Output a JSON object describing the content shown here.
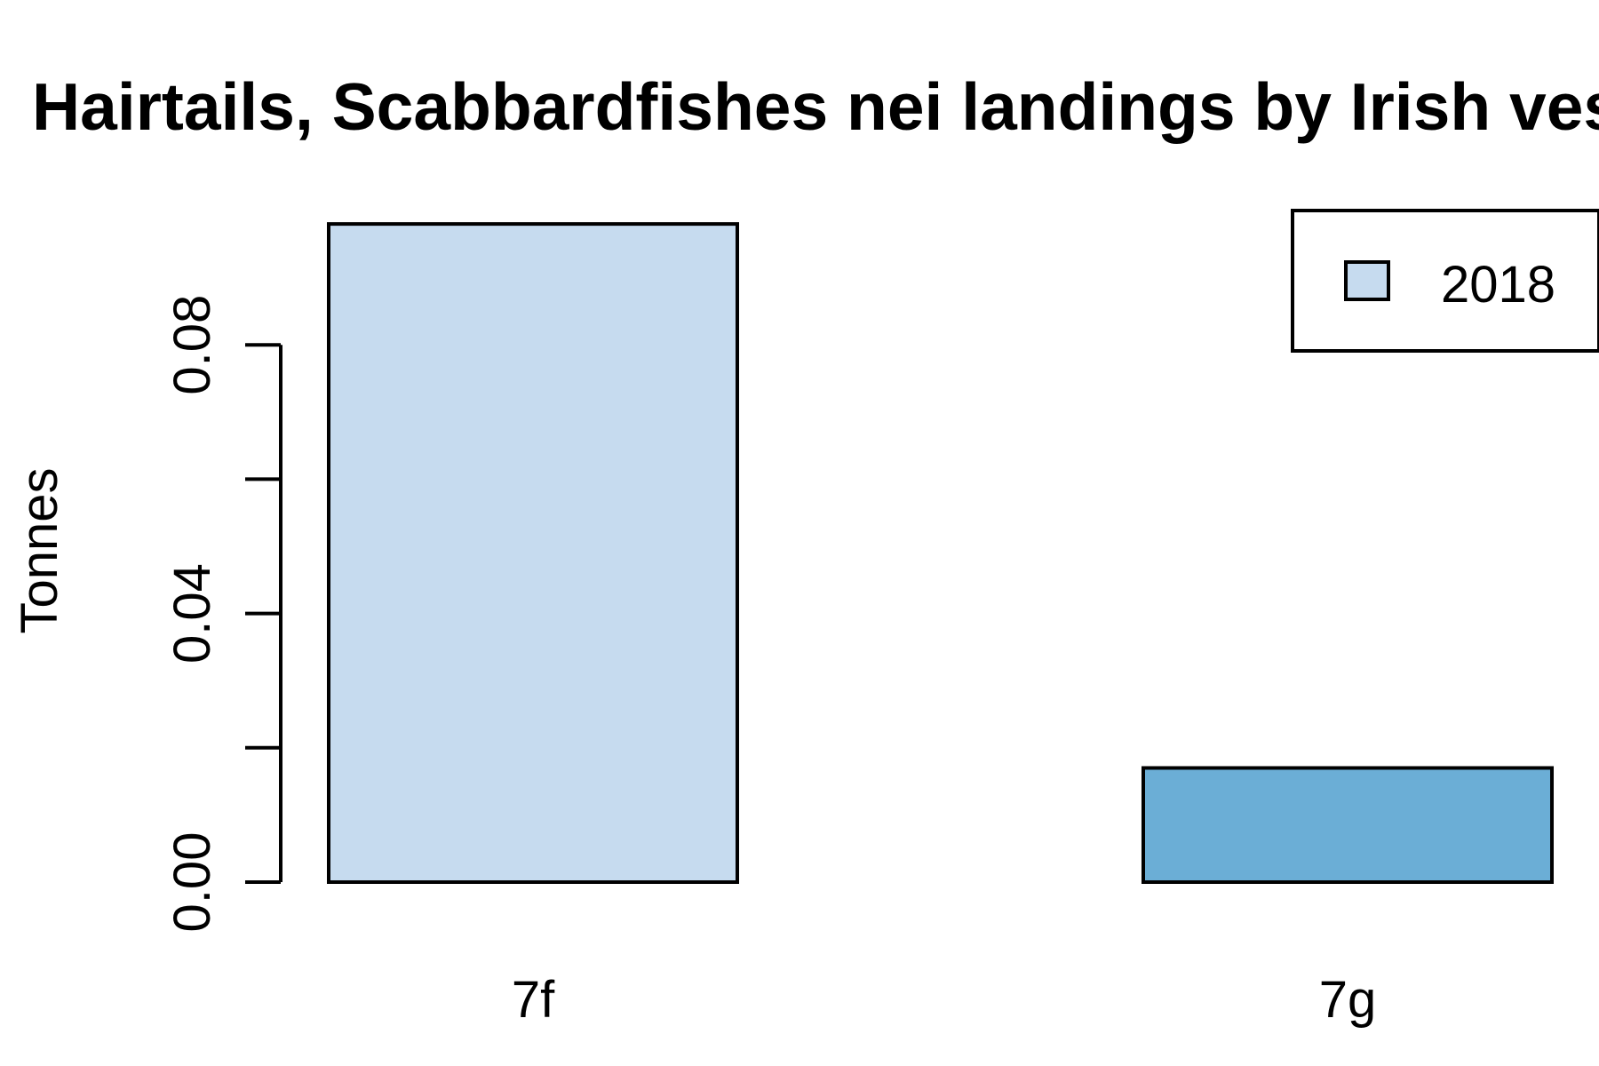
{
  "chart_data": {
    "type": "bar",
    "title": "Hairtails, Scabbardfishes nei landings by Irish vessels",
    "xlabel": "",
    "ylabel": "Tonnes",
    "categories": [
      "7f",
      "7g"
    ],
    "values": [
      0.098,
      0.017
    ],
    "bar_colors": [
      "#c6dbef",
      "#6baed6"
    ],
    "ylim": [
      0,
      0.1
    ],
    "yticks": [
      0.0,
      0.02,
      0.04,
      0.06,
      0.08
    ],
    "ytick_labels": [
      "0.00",
      "",
      "0.04",
      "",
      "0.08"
    ],
    "legend": {
      "position": "top-right",
      "entries": [
        {
          "label": "2018",
          "color": "#c6dbef"
        }
      ]
    },
    "grid": false
  }
}
